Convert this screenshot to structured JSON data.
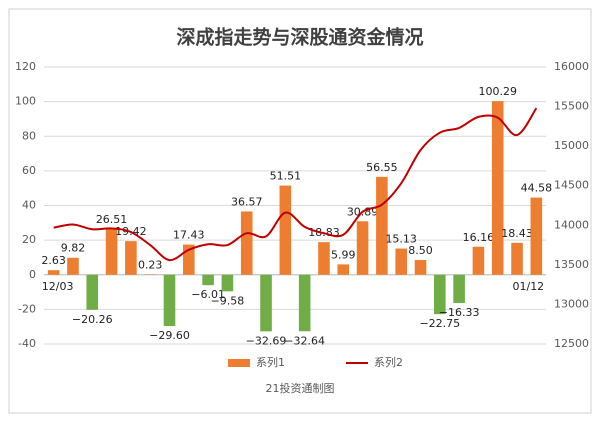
{
  "chart_data": {
    "type": "bar_line",
    "title": "深成指走势与深股通资金情况",
    "source": "21投资通制图",
    "categories": [
      "12/03",
      null,
      null,
      null,
      null,
      null,
      null,
      null,
      null,
      null,
      null,
      null,
      null,
      null,
      null,
      null,
      null,
      null,
      null,
      null,
      null,
      null,
      null,
      null,
      null,
      "01/12"
    ],
    "series": [
      {
        "name": "系列1",
        "type": "bar",
        "color": "#ED7D31",
        "negative_color": "#70AD47",
        "values": [
          2.63,
          9.82,
          -20.26,
          26.51,
          19.42,
          0.23,
          -29.6,
          17.43,
          -6.01,
          -9.58,
          36.57,
          -32.69,
          51.51,
          -32.64,
          18.83,
          5.99,
          30.89,
          56.55,
          15.13,
          8.5,
          -22.75,
          -16.33,
          16.16,
          100.29,
          18.43,
          44.58
        ],
        "value_labels": [
          "2.63",
          "9.82",
          "−20.26",
          "26.51",
          "19.42",
          "0.23",
          "−29.60",
          "17.43",
          "−6.01",
          "−9.58",
          "36.57",
          "−32.69",
          "51.51",
          "−32.64",
          "18.83",
          "5.99",
          "30.89",
          "56.55",
          "15.13",
          "8.50",
          "−22.75",
          "−16.33",
          "16.16",
          "100.29",
          "18.43",
          "44.58"
        ]
      },
      {
        "name": "系列2",
        "type": "line",
        "axis": "y2",
        "color": "#C00000",
        "values": [
          13970,
          14010,
          13950,
          13960,
          13915,
          13750,
          13560,
          13690,
          13760,
          13750,
          13900,
          13860,
          14160,
          13980,
          13900,
          13880,
          14170,
          14260,
          14530,
          14950,
          15170,
          15230,
          15370,
          15360,
          15140,
          15480
        ]
      }
    ],
    "ylim": [
      -40,
      120
    ],
    "yticks": [
      -40,
      -20,
      0,
      20,
      40,
      60,
      80,
      100,
      120
    ],
    "y2lim": [
      12500,
      16000
    ],
    "y2ticks": [
      12500,
      13000,
      13500,
      14000,
      14500,
      15000,
      15500,
      16000
    ],
    "grid": true,
    "legend": "bottom"
  }
}
